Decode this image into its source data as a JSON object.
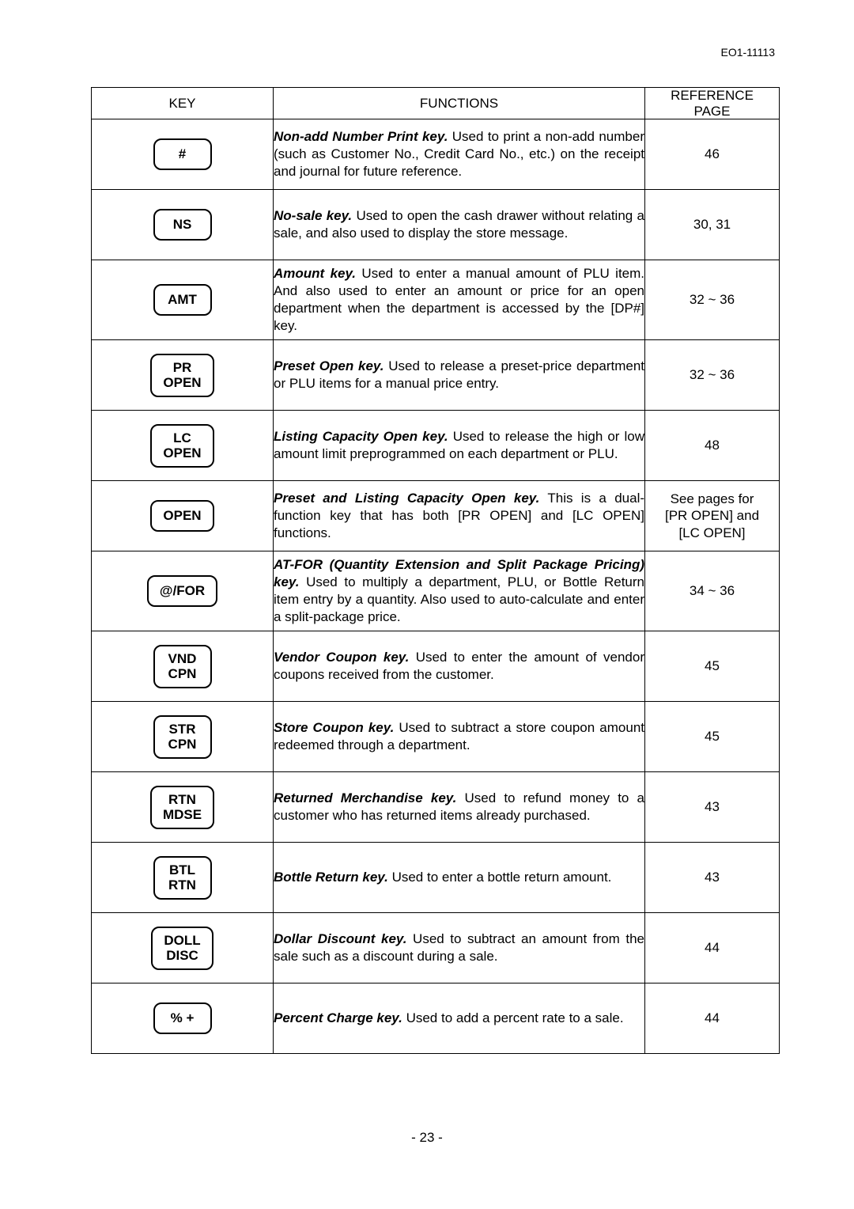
{
  "doc_code": "EO1-11113",
  "page_number": "- 23 -",
  "headers": {
    "key": "KEY",
    "functions": "FUNCTIONS",
    "reference_line1": "REFERENCE",
    "reference_line2": "PAGE"
  },
  "rows": [
    {
      "key_lines": [
        "#"
      ],
      "func_title": "Non-add Number Print key.",
      "func_body": "  Used to print a non-add number (such as Customer No., Credit Card No., etc.) on the receipt and journal for future reference.",
      "reference": "46"
    },
    {
      "key_lines": [
        "NS"
      ],
      "func_title": "No-sale key.",
      "func_body": "  Used to open the cash drawer without relating a sale, and also used to display the store message.",
      "reference": "30, 31"
    },
    {
      "key_lines": [
        "AMT"
      ],
      "func_title": "Amount key.",
      "func_body": "  Used to enter a manual amount of PLU item. And also used to enter an amount or price for an open department when the department is accessed by the [DP#] key.",
      "reference": "32 ~ 36",
      "tall": true
    },
    {
      "key_lines": [
        "PR",
        "OPEN"
      ],
      "func_title": "Preset Open key.",
      "func_body": "  Used to release a preset-price department or PLU items for a manual price entry.",
      "reference": "32 ~ 36"
    },
    {
      "key_lines": [
        "LC",
        "OPEN"
      ],
      "func_title": "Listing Capacity Open key.",
      "func_body": "  Used to release the high or low amount limit preprogrammed on each department or PLU.",
      "reference": "48"
    },
    {
      "key_lines": [
        "OPEN"
      ],
      "func_title": "Preset and Listing Capacity Open key.",
      "func_body": "  This is a dual-function key that has both [PR OPEN] and [LC OPEN] functions.",
      "reference": "See pages for\n[PR OPEN] and\n[LC OPEN]"
    },
    {
      "key_lines": [
        "@/FOR"
      ],
      "func_title": "AT-FOR (Quantity Extension and Split Package Pricing) key.",
      "func_body": "  Used to multiply a department, PLU, or Bottle Return item entry by a quantity. Also used to auto-calculate and enter a split-package price.",
      "reference": "34 ~ 36",
      "tall": true
    },
    {
      "key_lines": [
        "VND",
        "CPN"
      ],
      "func_title": "Vendor Coupon key.",
      "func_body": "  Used to enter the amount of vendor coupons received from the customer.",
      "reference": "45"
    },
    {
      "key_lines": [
        "STR",
        "CPN"
      ],
      "func_title": "Store Coupon key.",
      "func_body": "  Used to subtract a store coupon amount redeemed through a department.",
      "reference": "45"
    },
    {
      "key_lines": [
        "RTN",
        "MDSE"
      ],
      "func_title": "Returned Merchandise key.",
      "func_body": "  Used to refund money to a customer who has returned items already purchased.",
      "reference": "43"
    },
    {
      "key_lines": [
        "BTL",
        "RTN"
      ],
      "func_title": "Bottle Return key.",
      "func_body": "  Used to enter a bottle return amount.",
      "reference": "43"
    },
    {
      "key_lines": [
        "DOLL",
        "DISC"
      ],
      "func_title": "Dollar Discount key.",
      "func_body": "  Used to subtract an amount from the sale such as a discount during a sale.",
      "reference": "44"
    },
    {
      "key_lines": [
        "% +"
      ],
      "func_title": "Percent Charge key.",
      "func_body": "  Used to add a percent rate to a sale.",
      "reference": "44"
    }
  ]
}
